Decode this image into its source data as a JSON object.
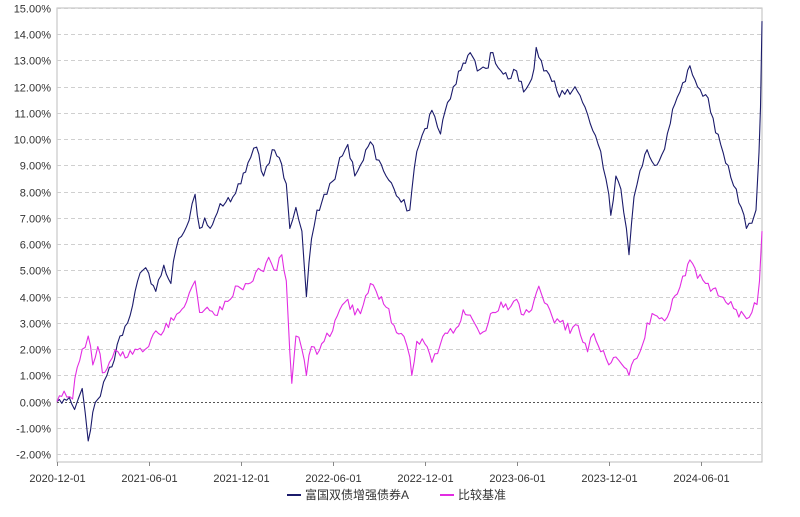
{
  "chart_data": {
    "type": "line",
    "y_ticks": [
      "-2.00%",
      "-1.00%",
      "0.00%",
      "1.00%",
      "2.00%",
      "3.00%",
      "4.00%",
      "5.00%",
      "6.00%",
      "7.00%",
      "8.00%",
      "9.00%",
      "10.00%",
      "11.00%",
      "12.00%",
      "13.00%",
      "14.00%",
      "15.00%"
    ],
    "x_ticks": [
      "2020-12-01",
      "2021-06-01",
      "2021-12-01",
      "2022-06-01",
      "2022-12-01",
      "2023-06-01",
      "2023-12-01",
      "2024-06-01"
    ],
    "ylim": [
      -2.3,
      15.0
    ],
    "xlim": [
      "2020-12-01",
      "2024-09-30"
    ],
    "grid": "horizontal-dashed",
    "legend_position": "bottom-center",
    "series": [
      {
        "name": "富国双债增强债券A",
        "color": "#1b1b6b",
        "points": [
          [
            "2020-12-01",
            0.0
          ],
          [
            "2020-12-20",
            0.05
          ],
          [
            "2021-01-05",
            -0.3
          ],
          [
            "2021-01-12",
            0.1
          ],
          [
            "2021-01-20",
            0.5
          ],
          [
            "2021-02-01",
            -1.5
          ],
          [
            "2021-02-10",
            -0.4
          ],
          [
            "2021-02-25",
            0.2
          ],
          [
            "2021-03-10",
            1.0
          ],
          [
            "2021-03-25",
            1.6
          ],
          [
            "2021-04-05",
            2.5
          ],
          [
            "2021-04-20",
            3.0
          ],
          [
            "2021-05-05",
            4.2
          ],
          [
            "2021-05-20",
            5.0
          ],
          [
            "2021-06-01",
            4.9
          ],
          [
            "2021-06-15",
            4.2
          ],
          [
            "2021-07-01",
            5.2
          ],
          [
            "2021-07-15",
            4.5
          ],
          [
            "2021-07-25",
            5.8
          ],
          [
            "2021-08-05",
            6.3
          ],
          [
            "2021-08-20",
            6.9
          ],
          [
            "2021-09-01",
            7.9
          ],
          [
            "2021-09-10",
            6.6
          ],
          [
            "2021-09-20",
            7.0
          ],
          [
            "2021-10-01",
            6.6
          ],
          [
            "2021-10-15",
            7.2
          ],
          [
            "2021-11-01",
            7.6
          ],
          [
            "2021-11-15",
            7.8
          ],
          [
            "2021-12-01",
            8.3
          ],
          [
            "2021-12-15",
            9.1
          ],
          [
            "2022-01-01",
            9.7
          ],
          [
            "2022-01-15",
            8.6
          ],
          [
            "2022-02-01",
            9.6
          ],
          [
            "2022-02-15",
            9.3
          ],
          [
            "2022-03-01",
            8.3
          ],
          [
            "2022-03-08",
            6.6
          ],
          [
            "2022-03-20",
            7.4
          ],
          [
            "2022-04-01",
            6.5
          ],
          [
            "2022-04-10",
            4.0
          ],
          [
            "2022-04-20",
            6.2
          ],
          [
            "2022-05-01",
            7.3
          ],
          [
            "2022-05-15",
            7.9
          ],
          [
            "2022-06-01",
            8.4
          ],
          [
            "2022-06-15",
            9.3
          ],
          [
            "2022-07-01",
            9.8
          ],
          [
            "2022-07-15",
            8.6
          ],
          [
            "2022-08-01",
            9.2
          ],
          [
            "2022-08-15",
            9.9
          ],
          [
            "2022-09-01",
            9.2
          ],
          [
            "2022-09-15",
            8.6
          ],
          [
            "2022-10-01",
            8.1
          ],
          [
            "2022-10-15",
            7.6
          ],
          [
            "2022-11-01",
            7.3
          ],
          [
            "2022-11-10",
            8.9
          ],
          [
            "2022-11-20",
            9.8
          ],
          [
            "2022-12-01",
            10.4
          ],
          [
            "2022-12-15",
            11.1
          ],
          [
            "2023-01-01",
            10.2
          ],
          [
            "2023-01-15",
            11.4
          ],
          [
            "2023-02-01",
            12.1
          ],
          [
            "2023-02-15",
            12.9
          ],
          [
            "2023-03-01",
            13.3
          ],
          [
            "2023-03-15",
            12.6
          ],
          [
            "2023-04-01",
            12.7
          ],
          [
            "2023-04-15",
            13.3
          ],
          [
            "2023-05-01",
            12.6
          ],
          [
            "2023-05-15",
            12.3
          ],
          [
            "2023-06-01",
            12.6
          ],
          [
            "2023-06-15",
            11.8
          ],
          [
            "2023-07-01",
            12.3
          ],
          [
            "2023-07-10",
            13.5
          ],
          [
            "2023-07-25",
            12.6
          ],
          [
            "2023-08-10",
            12.2
          ],
          [
            "2023-08-25",
            11.6
          ],
          [
            "2023-09-10",
            11.9
          ],
          [
            "2023-09-25",
            12.0
          ],
          [
            "2023-10-10",
            11.4
          ],
          [
            "2023-10-25",
            10.6
          ],
          [
            "2023-11-10",
            9.8
          ],
          [
            "2023-11-20",
            8.9
          ],
          [
            "2023-12-01",
            7.9
          ],
          [
            "2023-12-05",
            7.1
          ],
          [
            "2023-12-15",
            8.6
          ],
          [
            "2023-12-25",
            8.1
          ],
          [
            "2024-01-05",
            6.6
          ],
          [
            "2024-01-10",
            5.6
          ],
          [
            "2024-01-20",
            7.8
          ],
          [
            "2024-02-01",
            8.8
          ],
          [
            "2024-02-15",
            9.6
          ],
          [
            "2024-03-01",
            9.0
          ],
          [
            "2024-03-15",
            9.4
          ],
          [
            "2024-04-01",
            10.6
          ],
          [
            "2024-04-15",
            11.6
          ],
          [
            "2024-05-01",
            12.2
          ],
          [
            "2024-05-10",
            12.8
          ],
          [
            "2024-05-25",
            12.0
          ],
          [
            "2024-06-10",
            11.7
          ],
          [
            "2024-06-25",
            10.8
          ],
          [
            "2024-07-10",
            9.8
          ],
          [
            "2024-07-25",
            9.0
          ],
          [
            "2024-08-10",
            8.1
          ],
          [
            "2024-08-20",
            7.4
          ],
          [
            "2024-08-30",
            6.6
          ],
          [
            "2024-09-10",
            6.8
          ],
          [
            "2024-09-18",
            7.3
          ],
          [
            "2024-09-24",
            9.5
          ],
          [
            "2024-09-27",
            11.2
          ],
          [
            "2024-09-30",
            14.5
          ]
        ]
      },
      {
        "name": "比较基准",
        "color": "#e22de2",
        "points": [
          [
            "2020-12-01",
            0.0
          ],
          [
            "2020-12-15",
            0.4
          ],
          [
            "2021-01-01",
            0.1
          ],
          [
            "2021-01-10",
            1.3
          ],
          [
            "2021-01-20",
            2.0
          ],
          [
            "2021-02-01",
            2.5
          ],
          [
            "2021-02-10",
            1.4
          ],
          [
            "2021-02-20",
            2.1
          ],
          [
            "2021-03-01",
            1.1
          ],
          [
            "2021-03-15",
            1.5
          ],
          [
            "2021-04-01",
            1.9
          ],
          [
            "2021-04-20",
            1.7
          ],
          [
            "2021-05-05",
            2.0
          ],
          [
            "2021-05-20",
            1.9
          ],
          [
            "2021-06-01",
            2.1
          ],
          [
            "2021-06-15",
            2.7
          ],
          [
            "2021-07-01",
            2.7
          ],
          [
            "2021-07-15",
            3.2
          ],
          [
            "2021-08-01",
            3.4
          ],
          [
            "2021-08-15",
            3.8
          ],
          [
            "2021-09-01",
            4.6
          ],
          [
            "2021-09-10",
            3.4
          ],
          [
            "2021-09-25",
            3.6
          ],
          [
            "2021-10-10",
            3.3
          ],
          [
            "2021-10-25",
            3.5
          ],
          [
            "2021-11-10",
            3.9
          ],
          [
            "2021-11-25",
            4.4
          ],
          [
            "2021-12-10",
            4.5
          ],
          [
            "2021-12-25",
            4.6
          ],
          [
            "2022-01-10",
            5.0
          ],
          [
            "2022-01-25",
            5.5
          ],
          [
            "2022-02-10",
            5.0
          ],
          [
            "2022-02-20",
            5.6
          ],
          [
            "2022-03-01",
            4.6
          ],
          [
            "2022-03-08",
            1.9
          ],
          [
            "2022-03-12",
            0.7
          ],
          [
            "2022-03-20",
            2.5
          ],
          [
            "2022-04-01",
            2.0
          ],
          [
            "2022-04-10",
            1.0
          ],
          [
            "2022-04-20",
            2.1
          ],
          [
            "2022-05-01",
            1.8
          ],
          [
            "2022-05-15",
            2.3
          ],
          [
            "2022-06-01",
            2.7
          ],
          [
            "2022-06-15",
            3.5
          ],
          [
            "2022-07-01",
            3.9
          ],
          [
            "2022-07-15",
            3.3
          ],
          [
            "2022-08-01",
            3.7
          ],
          [
            "2022-08-15",
            4.5
          ],
          [
            "2022-09-01",
            3.9
          ],
          [
            "2022-09-15",
            3.6
          ],
          [
            "2022-10-01",
            2.9
          ],
          [
            "2022-10-15",
            2.6
          ],
          [
            "2022-11-01",
            1.7
          ],
          [
            "2022-11-05",
            1.0
          ],
          [
            "2022-11-15",
            2.3
          ],
          [
            "2022-12-01",
            2.2
          ],
          [
            "2022-12-15",
            1.5
          ],
          [
            "2023-01-01",
            2.2
          ],
          [
            "2023-01-15",
            2.6
          ],
          [
            "2023-02-01",
            2.8
          ],
          [
            "2023-02-15",
            3.5
          ],
          [
            "2023-03-01",
            3.3
          ],
          [
            "2023-03-15",
            2.8
          ],
          [
            "2023-04-01",
            2.7
          ],
          [
            "2023-04-15",
            3.4
          ],
          [
            "2023-05-01",
            3.8
          ],
          [
            "2023-05-15",
            3.5
          ],
          [
            "2023-06-01",
            3.9
          ],
          [
            "2023-06-15",
            3.3
          ],
          [
            "2023-07-01",
            3.5
          ],
          [
            "2023-07-15",
            4.4
          ],
          [
            "2023-08-01",
            3.7
          ],
          [
            "2023-08-15",
            3.0
          ],
          [
            "2023-09-01",
            3.1
          ],
          [
            "2023-09-15",
            2.6
          ],
          [
            "2023-10-01",
            2.9
          ],
          [
            "2023-10-20",
            1.9
          ],
          [
            "2023-11-01",
            2.6
          ],
          [
            "2023-11-15",
            1.9
          ],
          [
            "2023-12-01",
            1.4
          ],
          [
            "2023-12-15",
            1.7
          ],
          [
            "2024-01-01",
            1.3
          ],
          [
            "2024-01-10",
            1.0
          ],
          [
            "2024-01-20",
            1.6
          ],
          [
            "2024-02-01",
            1.9
          ],
          [
            "2024-02-15",
            3.0
          ],
          [
            "2024-03-01",
            3.3
          ],
          [
            "2024-03-15",
            3.2
          ],
          [
            "2024-04-01",
            3.5
          ],
          [
            "2024-04-15",
            4.1
          ],
          [
            "2024-05-01",
            4.8
          ],
          [
            "2024-05-10",
            5.4
          ],
          [
            "2024-05-25",
            4.7
          ],
          [
            "2024-06-10",
            4.5
          ],
          [
            "2024-06-25",
            4.3
          ],
          [
            "2024-07-10",
            4.0
          ],
          [
            "2024-07-25",
            3.7
          ],
          [
            "2024-08-10",
            3.5
          ],
          [
            "2024-08-25",
            3.3
          ],
          [
            "2024-09-10",
            3.4
          ],
          [
            "2024-09-20",
            3.7
          ],
          [
            "2024-09-25",
            4.6
          ],
          [
            "2024-09-30",
            6.5
          ]
        ]
      }
    ]
  }
}
